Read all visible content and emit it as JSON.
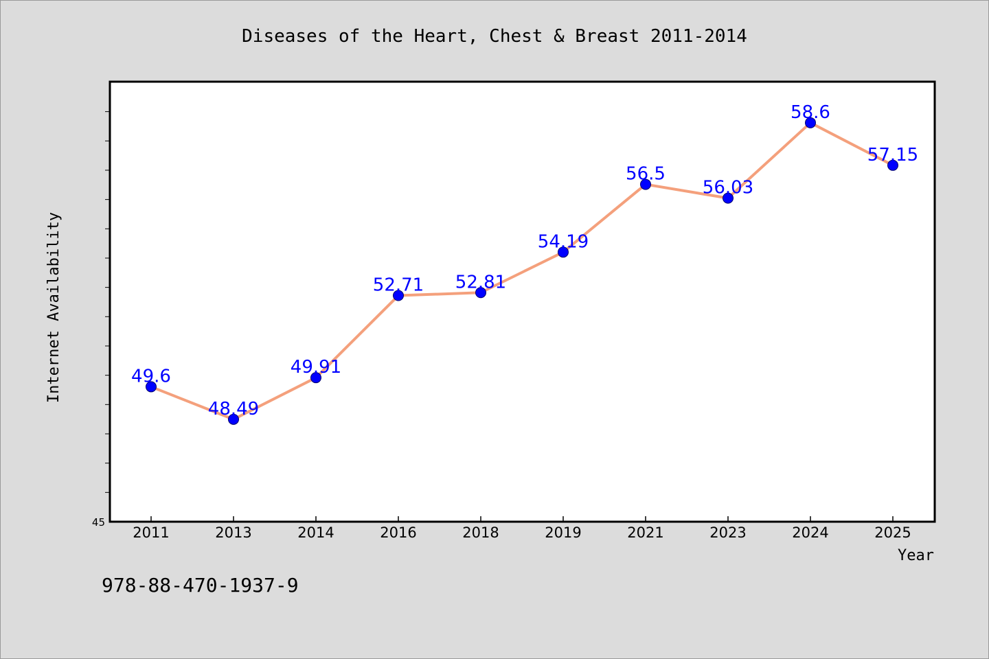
{
  "chart_data": {
    "type": "line",
    "title": "Diseases of the Heart, Chest & Breast 2011-2014",
    "xlabel": "Year",
    "ylabel": "Internet Availability",
    "categories": [
      "2011",
      "2013",
      "2014",
      "2016",
      "2018",
      "2019",
      "2021",
      "2023",
      "2024",
      "2025"
    ],
    "series": [
      {
        "values": [
          49.6,
          48.49,
          49.91,
          52.71,
          52.81,
          54.19,
          56.5,
          56.03,
          58.6,
          57.15
        ],
        "labels": [
          "49.6",
          "48.49",
          "49.91",
          "52.71",
          "52.81",
          "54.19",
          "56.5",
          "56.03",
          "58.6",
          "57.15"
        ]
      }
    ],
    "ylim": [
      45,
      60
    ],
    "yticks_labeled": [
      "45"
    ],
    "grid": false,
    "line_color": "#f4a07c",
    "marker_color": "#0000ff",
    "label_color": "#0000ff",
    "background": "#dcdcdc",
    "plot_background": "#ffffff"
  },
  "footer": {
    "isbn": "978-88-470-1937-9"
  }
}
